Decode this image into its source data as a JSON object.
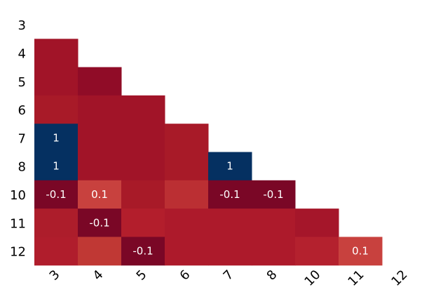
{
  "chart_data": {
    "type": "heatmap",
    "title": "",
    "xlabel": "",
    "ylabel": "",
    "grid": false,
    "legend": "none",
    "row_labels": [
      "3",
      "4",
      "5",
      "6",
      "7",
      "8",
      "10",
      "11",
      "12"
    ],
    "col_labels": [
      "3",
      "4",
      "5",
      "6",
      "7",
      "8",
      "10",
      "11",
      "12"
    ],
    "mask": "upper-triangle-including-diagonal",
    "cells": [
      {
        "row": "4",
        "col": "3",
        "value": 0.0,
        "label": "",
        "color": "#a11428"
      },
      {
        "row": "5",
        "col": "3",
        "value": 0.0,
        "label": "",
        "color": "#a11428"
      },
      {
        "row": "5",
        "col": "4",
        "value": -0.05,
        "label": "",
        "color": "#900c27"
      },
      {
        "row": "6",
        "col": "3",
        "value": 0.0,
        "label": "",
        "color": "#a81a28"
      },
      {
        "row": "6",
        "col": "4",
        "value": 0.0,
        "label": "",
        "color": "#a11428"
      },
      {
        "row": "6",
        "col": "5",
        "value": 0.0,
        "label": "",
        "color": "#a11428"
      },
      {
        "row": "7",
        "col": "3",
        "value": 1,
        "label": "1",
        "color": "#053061"
      },
      {
        "row": "7",
        "col": "4",
        "value": 0.0,
        "label": "",
        "color": "#a11428"
      },
      {
        "row": "7",
        "col": "5",
        "value": 0.0,
        "label": "",
        "color": "#a11428"
      },
      {
        "row": "7",
        "col": "6",
        "value": 0.0,
        "label": "",
        "color": "#a81a28"
      },
      {
        "row": "8",
        "col": "3",
        "value": 1,
        "label": "1",
        "color": "#053061"
      },
      {
        "row": "8",
        "col": "4",
        "value": 0.0,
        "label": "",
        "color": "#a11428"
      },
      {
        "row": "8",
        "col": "5",
        "value": 0.0,
        "label": "",
        "color": "#a11428"
      },
      {
        "row": "8",
        "col": "6",
        "value": 0.0,
        "label": "",
        "color": "#a81a28"
      },
      {
        "row": "8",
        "col": "7",
        "value": 1,
        "label": "1",
        "color": "#053061"
      },
      {
        "row": "10",
        "col": "3",
        "value": -0.1,
        "label": "-0.1",
        "color": "#7a0726"
      },
      {
        "row": "10",
        "col": "4",
        "value": 0.1,
        "label": "0.1",
        "color": "#c8413e"
      },
      {
        "row": "10",
        "col": "5",
        "value": 0.0,
        "label": "",
        "color": "#a81a28"
      },
      {
        "row": "10",
        "col": "6",
        "value": 0.05,
        "label": "",
        "color": "#bb2f33"
      },
      {
        "row": "10",
        "col": "7",
        "value": -0.1,
        "label": "-0.1",
        "color": "#7a0726"
      },
      {
        "row": "10",
        "col": "8",
        "value": -0.1,
        "label": "-0.1",
        "color": "#7a0726"
      },
      {
        "row": "11",
        "col": "3",
        "value": 0.0,
        "label": "",
        "color": "#ad1d2b"
      },
      {
        "row": "11",
        "col": "4",
        "value": -0.1,
        "label": "-0.1",
        "color": "#7a0726"
      },
      {
        "row": "11",
        "col": "5",
        "value": 0.02,
        "label": "",
        "color": "#b31e2c"
      },
      {
        "row": "11",
        "col": "6",
        "value": 0.0,
        "label": "",
        "color": "#ad1a2b"
      },
      {
        "row": "11",
        "col": "7",
        "value": 0.0,
        "label": "",
        "color": "#ad1a2b"
      },
      {
        "row": "11",
        "col": "8",
        "value": 0.0,
        "label": "",
        "color": "#ad1a2b"
      },
      {
        "row": "11",
        "col": "10",
        "value": 0.0,
        "label": "",
        "color": "#a5162a"
      },
      {
        "row": "12",
        "col": "3",
        "value": 0.02,
        "label": "",
        "color": "#b01d2c"
      },
      {
        "row": "12",
        "col": "4",
        "value": 0.07,
        "label": "",
        "color": "#c03834"
      },
      {
        "row": "12",
        "col": "5",
        "value": -0.1,
        "label": "-0.1",
        "color": "#7a0726"
      },
      {
        "row": "12",
        "col": "6",
        "value": 0.0,
        "label": "",
        "color": "#ad1a2b"
      },
      {
        "row": "12",
        "col": "7",
        "value": 0.0,
        "label": "",
        "color": "#ad1a2b"
      },
      {
        "row": "12",
        "col": "8",
        "value": 0.0,
        "label": "",
        "color": "#ad1a2b"
      },
      {
        "row": "12",
        "col": "10",
        "value": 0.02,
        "label": "",
        "color": "#b4212e"
      },
      {
        "row": "12",
        "col": "11",
        "value": 0.1,
        "label": "0.1",
        "color": "#c8413e"
      }
    ]
  }
}
